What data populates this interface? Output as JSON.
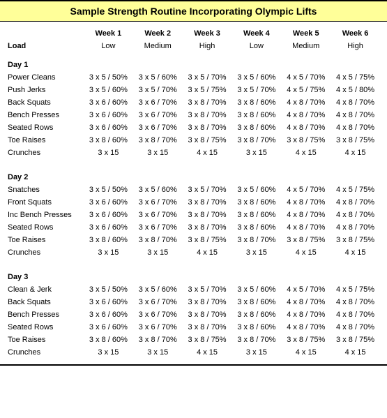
{
  "title": "Sample Strength Routine Incorporating Olympic Lifts",
  "label_heading": "Load",
  "weeks": [
    "Week 1",
    "Week 2",
    "Week 3",
    "Week 4",
    "Week 5",
    "Week 6"
  ],
  "loads": [
    "Low",
    "Medium",
    "High",
    "Low",
    "Medium",
    "High"
  ],
  "colors": {
    "title_bg": "#ffff99",
    "border": "#000000",
    "background": "#ffffff"
  },
  "fonts": {
    "title_size": 14,
    "body_size": 11
  },
  "days": [
    {
      "name": "Day 1",
      "exercises": [
        {
          "name": "Power Cleans",
          "cells": [
            "3 x 5 / 50%",
            "3 x 5 / 60%",
            "3 x 5 / 70%",
            "3 x 5 / 60%",
            "4 x 5 / 70%",
            "4 x 5 / 75%"
          ]
        },
        {
          "name": "Push Jerks",
          "cells": [
            "3 x 5 / 60%",
            "3 x 5 / 70%",
            "3 x 5 / 75%",
            "3 x 5 / 70%",
            "4 x 5 / 75%",
            "4 x 5 / 80%"
          ]
        },
        {
          "name": "Back Squats",
          "cells": [
            "3 x 6 / 60%",
            "3 x 6 / 70%",
            "3 x 8 / 70%",
            "3 x 8 / 60%",
            "4 x 8 / 70%",
            "4 x 8 / 70%"
          ]
        },
        {
          "name": "Bench Presses",
          "cells": [
            "3 x 6 / 60%",
            "3 x 6 / 70%",
            "3 x 8 / 70%",
            "3 x 8 / 60%",
            "4 x 8 / 70%",
            "4 x 8 / 70%"
          ]
        },
        {
          "name": "Seated Rows",
          "cells": [
            "3 x 6 / 60%",
            "3 x 6 / 70%",
            "3 x 8 / 70%",
            "3 x 8 / 60%",
            "4 x 8 / 70%",
            "4 x 8 / 70%"
          ]
        },
        {
          "name": "Toe Raises",
          "cells": [
            "3 x 8 / 60%",
            "3 x 8 / 70%",
            "3 x 8 / 75%",
            "3 x 8 / 70%",
            "3 x 8 / 75%",
            "3 x 8 / 75%"
          ]
        },
        {
          "name": "Crunches",
          "cells": [
            "3 x 15",
            "3 x 15",
            "4 x 15",
            "3 x 15",
            "4 x 15",
            "4 x 15"
          ]
        }
      ]
    },
    {
      "name": "Day 2",
      "exercises": [
        {
          "name": "Snatches",
          "cells": [
            "3 x 5 / 50%",
            "3 x 5 / 60%",
            "3 x 5 / 70%",
            "3 x 5 / 60%",
            "4 x 5 / 70%",
            "4 x 5 / 75%"
          ]
        },
        {
          "name": "Front Squats",
          "cells": [
            "3 x 6 / 60%",
            "3 x 6 / 70%",
            "3 x 8 / 70%",
            "3 x 8 / 60%",
            "4 x 8 / 70%",
            "4 x 8 / 70%"
          ]
        },
        {
          "name": "Inc Bench Presses",
          "cells": [
            "3 x 6 / 60%",
            "3 x 6 / 70%",
            "3 x 8 / 70%",
            "3 x 8 / 60%",
            "4 x 8 / 70%",
            "4 x 8 / 70%"
          ]
        },
        {
          "name": "Seated Rows",
          "cells": [
            "3 x 6 / 60%",
            "3 x 6 / 70%",
            "3 x 8 / 70%",
            "3 x 8 / 60%",
            "4 x 8 / 70%",
            "4 x 8 / 70%"
          ]
        },
        {
          "name": "Toe Raises",
          "cells": [
            "3 x 8 / 60%",
            "3 x 8 / 70%",
            "3 x 8 / 75%",
            "3 x 8 / 70%",
            "3 x 8 / 75%",
            "3 x 8 / 75%"
          ]
        },
        {
          "name": "Crunches",
          "cells": [
            "3 x 15",
            "3 x 15",
            "4 x 15",
            "3 x 15",
            "4 x 15",
            "4 x 15"
          ]
        }
      ]
    },
    {
      "name": "Day 3",
      "exercises": [
        {
          "name": "Clean & Jerk",
          "cells": [
            "3 x 5 / 50%",
            "3 x 5 / 60%",
            "3 x 5 / 70%",
            "3 x 5 / 60%",
            "4 x 5 / 70%",
            "4 x 5 / 75%"
          ]
        },
        {
          "name": "Back Squats",
          "cells": [
            "3 x 6 / 60%",
            "3 x 6 / 70%",
            "3 x 8 / 70%",
            "3 x 8 / 60%",
            "4 x 8 / 70%",
            "4 x 8 / 70%"
          ]
        },
        {
          "name": "Bench Presses",
          "cells": [
            "3 x 6 / 60%",
            "3 x 6 / 70%",
            "3 x 8 / 70%",
            "3 x 8 / 60%",
            "4 x 8 / 70%",
            "4 x 8 / 70%"
          ]
        },
        {
          "name": "Seated Rows",
          "cells": [
            "3 x 6 / 60%",
            "3 x 6 / 70%",
            "3 x 8 / 70%",
            "3 x 8 / 60%",
            "4 x 8 / 70%",
            "4 x 8 / 70%"
          ]
        },
        {
          "name": "Toe Raises",
          "cells": [
            "3 x 8 / 60%",
            "3 x 8 / 70%",
            "3 x 8 / 75%",
            "3 x 8 / 70%",
            "3 x 8 / 75%",
            "3 x 8 / 75%"
          ]
        },
        {
          "name": "Crunches",
          "cells": [
            "3 x 15",
            "3 x 15",
            "4 x 15",
            "3 x 15",
            "4 x 15",
            "4 x 15"
          ]
        }
      ]
    }
  ]
}
